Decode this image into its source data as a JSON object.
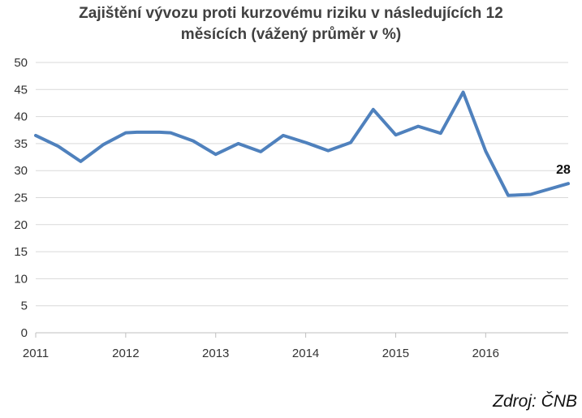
{
  "chart_data": {
    "type": "line",
    "title_line1": "Zajištění vývozu proti kurzovému riziku v následujících 12",
    "title_line2": "měsících (vážený průměr v %)",
    "ylim": [
      0,
      50
    ],
    "yticks": [
      "0",
      "5",
      "10",
      "15",
      "20",
      "25",
      "30",
      "35",
      "40",
      "45",
      "50"
    ],
    "xlim": [
      2011,
      2016.917
    ],
    "xticks": [
      "2011",
      "2012",
      "2013",
      "2014",
      "2015",
      "2016"
    ],
    "grid": true,
    "line_color": "#4f81bd",
    "series": [
      {
        "x": [
          2011.0,
          2011.25,
          2011.5,
          2011.75,
          2012.0,
          2012.125,
          2012.25,
          2012.375,
          2012.5,
          2012.75,
          2013.0,
          2013.25,
          2013.5,
          2013.75,
          2014.0,
          2014.25,
          2014.5,
          2014.75,
          2015.0,
          2015.25,
          2015.5,
          2015.75,
          2016.0,
          2016.25,
          2016.5,
          2016.917
        ],
        "values": [
          36.5,
          34.5,
          31.7,
          34.8,
          37.0,
          37.1,
          37.1,
          37.1,
          37.0,
          35.5,
          33.0,
          35.0,
          33.5,
          36.5,
          35.2,
          33.7,
          35.2,
          41.3,
          36.6,
          38.2,
          36.9,
          44.5,
          33.6,
          25.4,
          25.6,
          27.6
        ]
      }
    ],
    "end_label": "28"
  },
  "source": "Zdroj: ČNB"
}
